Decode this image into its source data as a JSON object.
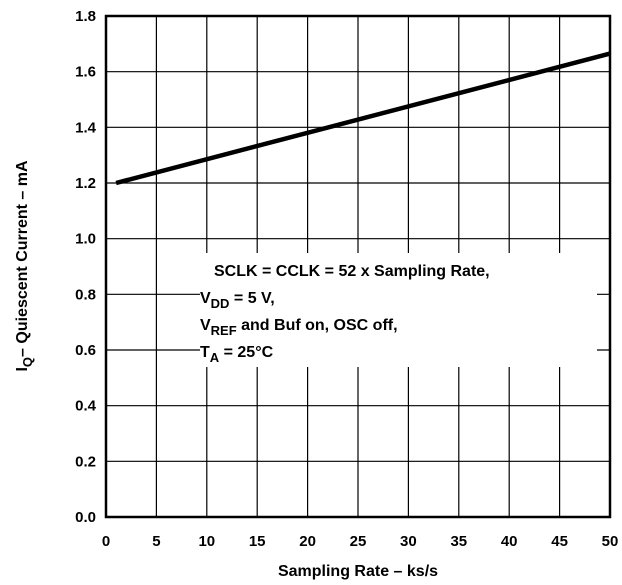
{
  "chart_data": {
    "type": "line",
    "title": "",
    "xlabel": "Sampling Rate – ks/s",
    "ylabel": {
      "main": "I",
      "sub": "Q",
      "rest": "– Quiescent Current – mA"
    },
    "xlim": [
      0,
      50
    ],
    "ylim": [
      0.0,
      1.8
    ],
    "x_ticks": [
      "0",
      "5",
      "10",
      "15",
      "20",
      "25",
      "30",
      "35",
      "40",
      "45",
      "50"
    ],
    "y_ticks": [
      "0.0",
      "0.2",
      "0.4",
      "0.6",
      "0.8",
      "1.0",
      "1.2",
      "1.4",
      "1.6",
      "1.8"
    ],
    "grid": true,
    "series": [
      {
        "x": [
          1,
          50
        ],
        "y": [
          1.2,
          1.665
        ]
      }
    ],
    "annotation": {
      "line1": "SCLK = CCLK = 52 x Sampling Rate,",
      "line2": {
        "main": "V",
        "sub": "DD",
        "rest": " = 5 V,"
      },
      "line3": {
        "main": "V",
        "sub": "REF",
        "rest": " and Buf on, OSC off,"
      },
      "line4": {
        "main": "T",
        "sub": "A",
        "rest": " = 25°C"
      }
    }
  }
}
